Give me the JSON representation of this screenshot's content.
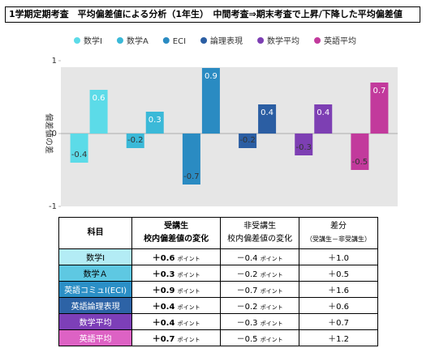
{
  "chart_data": {
    "type": "bar",
    "title": "1学期定期考査　平均偏差値による分析（1年生）　中間考査⇒期末考査で上昇/下降した平均偏差値",
    "y_label": "偏差値の差",
    "categories": [
      null,
      null
    ],
    "series": [
      {
        "name": "数学Ⅰ",
        "color": "#5cdbe8",
        "values": [
          -0.4,
          0.6
        ]
      },
      {
        "name": "数学A",
        "color": "#3bb9d8",
        "values": [
          -0.2,
          0.3
        ]
      },
      {
        "name": "ECI",
        "color": "#2a8bc2",
        "values": [
          -0.7,
          0.9
        ]
      },
      {
        "name": "論理表現",
        "color": "#2b5ea3",
        "values": [
          -0.2,
          0.4
        ]
      },
      {
        "name": "数学平均",
        "color": "#7d3fb3",
        "values": [
          -0.3,
          0.4
        ]
      },
      {
        "name": "英語平均",
        "color": "#c23a9c",
        "values": [
          -0.5,
          0.7
        ]
      }
    ],
    "ylim": [
      -1,
      1
    ],
    "yticks": [
      -1,
      0,
      1
    ],
    "grid": false,
    "legend": "top"
  },
  "table": {
    "header": [
      "科目",
      "受講生",
      "校内偏差値の変化",
      "非受講生",
      "校内偏差値の変化",
      "差分",
      "（受講生－非受講生）"
    ],
    "rows": [
      {
        "subject": "数学Ⅰ",
        "bg": "#b3ecf5",
        "fg": "#000",
        "rec": "＋0.6",
        "rec_unit": "ポイント",
        "non": "－0.4",
        "non_unit": "ポイント",
        "diff": "＋1.0"
      },
      {
        "subject": "数学Ａ",
        "bg": "#5ec8e2",
        "fg": "#000",
        "rec": "＋0.3",
        "rec_unit": "ポイント",
        "non": "－0.2",
        "non_unit": "ポイント",
        "diff": "＋0.5"
      },
      {
        "subject": "英語コミュⅠ(ECI)",
        "bg": "#2b8fc6",
        "fg": "#fff",
        "rec": "＋0.9",
        "rec_unit": "ポイント",
        "non": "－0.7",
        "non_unit": "ポイント",
        "diff": "＋1.6"
      },
      {
        "subject": "英語論理表現",
        "bg": "#2d63a6",
        "fg": "#fff",
        "rec": "＋0.4",
        "rec_unit": "ポイント",
        "non": "－0.2",
        "non_unit": "ポイント",
        "diff": "＋0.6"
      },
      {
        "subject": "数学平均",
        "bg": "#7d3fb8",
        "fg": "#fff",
        "rec": "＋0.4",
        "rec_unit": "ポイント",
        "non": "－0.3",
        "non_unit": "ポイント",
        "diff": "＋0.7"
      },
      {
        "subject": "英語平均",
        "bg": "#dd62c4",
        "fg": "#fff",
        "rec": "＋0.7",
        "rec_unit": "ポイント",
        "non": "－0.5",
        "non_unit": "ポイント",
        "diff": "＋1.2"
      }
    ]
  }
}
